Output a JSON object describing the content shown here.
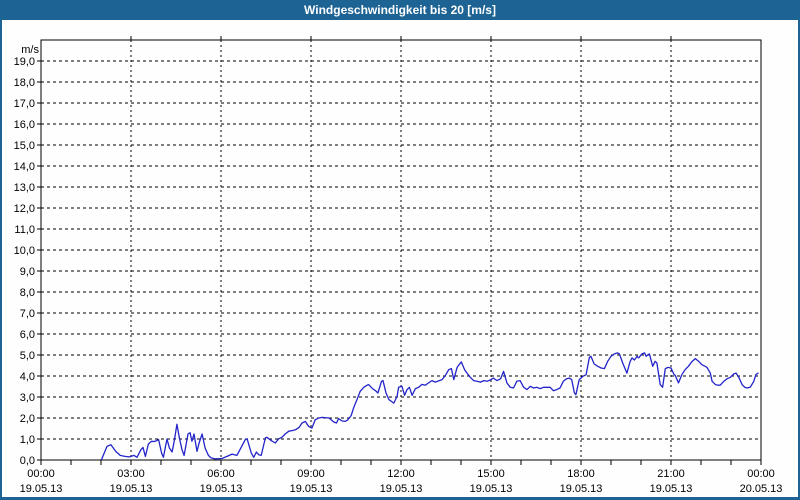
{
  "window": {
    "title": "Windgeschwindigkeit bis 20 [m/s]"
  },
  "colors": {
    "titlebar_bg": "#1d6394",
    "titlebar_text": "#ffffff",
    "frame_border": "#1d6394",
    "page_bg": "#fdfefd",
    "axis": "#000000",
    "grid": "#000000",
    "label_text": "#000000",
    "line": "#2424cb"
  },
  "chart_data": {
    "type": "line",
    "title": "Windgeschwindigkeit bis 20 [m/s]",
    "y_unit_label": "m/s",
    "ylabel": "",
    "xlabel": "",
    "ylim": [
      0,
      20
    ],
    "y_tick_step": 1,
    "y_tick_labels": [
      "0,0",
      "1,0",
      "2,0",
      "3,0",
      "4,0",
      "5,0",
      "6,0",
      "7,0",
      "8,0",
      "9,0",
      "10,0",
      "11,0",
      "12,0",
      "13,0",
      "14,0",
      "15,0",
      "16,0",
      "17,0",
      "18,0",
      "19,0"
    ],
    "grid": {
      "style": "dashed",
      "x_every_hours": 3,
      "y_every": 1
    },
    "legend": "none",
    "x_axis": {
      "range_hours": [
        0,
        24
      ],
      "minor_tick_every_hours": 1,
      "major_ticks": [
        {
          "hour": 0,
          "time": "00:00",
          "date": "19.05.13"
        },
        {
          "hour": 3,
          "time": "03:00",
          "date": "19.05.13"
        },
        {
          "hour": 6,
          "time": "06:00",
          "date": "19.05.13"
        },
        {
          "hour": 9,
          "time": "09:00",
          "date": "19.05.13"
        },
        {
          "hour": 12,
          "time": "12:00",
          "date": "19.05.13"
        },
        {
          "hour": 15,
          "time": "15:00",
          "date": "19.05.13"
        },
        {
          "hour": 18,
          "time": "18:00",
          "date": "19.05.13"
        },
        {
          "hour": 21,
          "time": "21:00",
          "date": "19.05.13"
        },
        {
          "hour": 24,
          "time": "00:00",
          "date": "20.05.13"
        }
      ]
    },
    "series": [
      {
        "name": "Windgeschwindigkeit",
        "unit": "m/s",
        "color": "#2424cb",
        "data_starts_at_hour": 2,
        "points_hour_value": [
          [
            2.02,
            0.03
          ],
          [
            2.2,
            0.65
          ],
          [
            2.33,
            0.73
          ],
          [
            2.5,
            0.4
          ],
          [
            2.64,
            0.22
          ],
          [
            2.8,
            0.17
          ],
          [
            2.95,
            0.15
          ],
          [
            3.1,
            0.22
          ],
          [
            3.2,
            0.13
          ],
          [
            3.33,
            0.49
          ],
          [
            3.4,
            0.6
          ],
          [
            3.48,
            0.17
          ],
          [
            3.58,
            0.76
          ],
          [
            3.68,
            0.89
          ],
          [
            3.77,
            0.88
          ],
          [
            3.85,
            0.92
          ],
          [
            3.92,
            0.97
          ],
          [
            4.02,
            0.33
          ],
          [
            4.08,
            0.13
          ],
          [
            4.2,
            1.0
          ],
          [
            4.28,
            0.57
          ],
          [
            4.37,
            0.38
          ],
          [
            4.45,
            0.97
          ],
          [
            4.53,
            1.7
          ],
          [
            4.62,
            1.0
          ],
          [
            4.7,
            0.49
          ],
          [
            4.77,
            0.22
          ],
          [
            4.9,
            1.24
          ],
          [
            4.97,
            1.3
          ],
          [
            5.03,
            0.89
          ],
          [
            5.1,
            1.24
          ],
          [
            5.2,
            0.41
          ],
          [
            5.27,
            0.81
          ],
          [
            5.37,
            1.24
          ],
          [
            5.47,
            0.57
          ],
          [
            5.58,
            0.22
          ],
          [
            5.67,
            0.1
          ],
          [
            5.8,
            0.05
          ],
          [
            6.03,
            0.07
          ],
          [
            6.2,
            0.17
          ],
          [
            6.37,
            0.28
          ],
          [
            6.53,
            0.22
          ],
          [
            6.81,
            0.97
          ],
          [
            6.87,
            1.01
          ],
          [
            7.01,
            0.33
          ],
          [
            7.09,
            0.13
          ],
          [
            7.18,
            0.38
          ],
          [
            7.26,
            0.25
          ],
          [
            7.34,
            0.22
          ],
          [
            7.48,
            1.05
          ],
          [
            7.53,
            1.08
          ],
          [
            7.68,
            0.92
          ],
          [
            7.81,
            0.81
          ],
          [
            7.92,
            1.01
          ],
          [
            8.03,
            1.08
          ],
          [
            8.14,
            1.24
          ],
          [
            8.26,
            1.37
          ],
          [
            8.37,
            1.4
          ],
          [
            8.48,
            1.44
          ],
          [
            8.61,
            1.56
          ],
          [
            8.7,
            1.76
          ],
          [
            8.81,
            1.84
          ],
          [
            8.92,
            1.6
          ],
          [
            9.03,
            1.52
          ],
          [
            9.14,
            1.92
          ],
          [
            9.26,
            2.0
          ],
          [
            9.37,
            2.03
          ],
          [
            9.6,
            2.0
          ],
          [
            9.76,
            1.81
          ],
          [
            9.85,
            1.76
          ],
          [
            9.92,
            1.97
          ],
          [
            10.03,
            1.86
          ],
          [
            10.14,
            1.84
          ],
          [
            10.22,
            1.9
          ],
          [
            10.34,
            2.12
          ],
          [
            10.42,
            2.48
          ],
          [
            10.53,
            2.87
          ],
          [
            10.64,
            3.27
          ],
          [
            10.76,
            3.46
          ],
          [
            10.87,
            3.56
          ],
          [
            10.92,
            3.59
          ],
          [
            11.05,
            3.4
          ],
          [
            11.15,
            3.3
          ],
          [
            11.23,
            3.19
          ],
          [
            11.35,
            3.75
          ],
          [
            11.4,
            3.78
          ],
          [
            11.5,
            3.19
          ],
          [
            11.6,
            2.87
          ],
          [
            11.68,
            2.79
          ],
          [
            11.76,
            2.71
          ],
          [
            11.87,
            3.03
          ],
          [
            11.92,
            3.46
          ],
          [
            12.03,
            3.51
          ],
          [
            12.12,
            3.08
          ],
          [
            12.2,
            3.35
          ],
          [
            12.28,
            3.46
          ],
          [
            12.37,
            3.08
          ],
          [
            12.48,
            3.4
          ],
          [
            12.59,
            3.46
          ],
          [
            12.7,
            3.6
          ],
          [
            12.81,
            3.56
          ],
          [
            12.92,
            3.67
          ],
          [
            13.03,
            3.78
          ],
          [
            13.14,
            3.71
          ],
          [
            13.37,
            3.83
          ],
          [
            13.48,
            4.03
          ],
          [
            13.59,
            4.3
          ],
          [
            13.68,
            4.35
          ],
          [
            13.76,
            3.83
          ],
          [
            13.87,
            4.41
          ],
          [
            14.01,
            4.67
          ],
          [
            14.12,
            4.3
          ],
          [
            14.2,
            4.14
          ],
          [
            14.31,
            3.94
          ],
          [
            14.42,
            3.78
          ],
          [
            14.53,
            3.75
          ],
          [
            14.65,
            3.71
          ],
          [
            14.76,
            3.78
          ],
          [
            14.87,
            3.75
          ],
          [
            15.0,
            3.83
          ],
          [
            15.08,
            3.9
          ],
          [
            15.2,
            3.78
          ],
          [
            15.32,
            3.87
          ],
          [
            15.42,
            4.22
          ],
          [
            15.53,
            3.67
          ],
          [
            15.64,
            3.46
          ],
          [
            15.75,
            3.43
          ],
          [
            15.86,
            3.75
          ],
          [
            15.97,
            3.78
          ],
          [
            16.09,
            3.46
          ],
          [
            16.2,
            3.35
          ],
          [
            16.31,
            3.51
          ],
          [
            16.42,
            3.43
          ],
          [
            16.53,
            3.46
          ],
          [
            16.64,
            3.4
          ],
          [
            16.75,
            3.46
          ],
          [
            16.86,
            3.46
          ],
          [
            16.97,
            3.46
          ],
          [
            17.08,
            3.3
          ],
          [
            17.19,
            3.35
          ],
          [
            17.3,
            3.43
          ],
          [
            17.41,
            3.75
          ],
          [
            17.52,
            3.87
          ],
          [
            17.61,
            3.9
          ],
          [
            17.69,
            3.83
          ],
          [
            17.78,
            3.19
          ],
          [
            17.83,
            3.11
          ],
          [
            17.94,
            3.83
          ],
          [
            18.06,
            3.98
          ],
          [
            18.17,
            4.06
          ],
          [
            18.28,
            4.89
          ],
          [
            18.33,
            4.94
          ],
          [
            18.44,
            4.57
          ],
          [
            18.56,
            4.46
          ],
          [
            18.67,
            4.38
          ],
          [
            18.78,
            4.35
          ],
          [
            18.89,
            4.7
          ],
          [
            19.0,
            4.94
          ],
          [
            19.11,
            5.05
          ],
          [
            19.22,
            5.1
          ],
          [
            19.28,
            5.05
          ],
          [
            19.39,
            4.62
          ],
          [
            19.53,
            4.14
          ],
          [
            19.64,
            4.7
          ],
          [
            19.7,
            4.86
          ],
          [
            19.78,
            4.76
          ],
          [
            19.87,
            4.94
          ],
          [
            19.92,
            4.86
          ],
          [
            20.03,
            5.05
          ],
          [
            20.12,
            5.1
          ],
          [
            20.17,
            4.94
          ],
          [
            20.24,
            5.02
          ],
          [
            20.28,
            5.05
          ],
          [
            20.39,
            4.46
          ],
          [
            20.47,
            4.7
          ],
          [
            20.53,
            4.62
          ],
          [
            20.64,
            3.59
          ],
          [
            20.72,
            3.46
          ],
          [
            20.81,
            4.35
          ],
          [
            20.9,
            4.41
          ],
          [
            21.0,
            4.38
          ],
          [
            21.09,
            4.1
          ],
          [
            21.14,
            4.03
          ],
          [
            21.25,
            3.67
          ],
          [
            21.36,
            4.06
          ],
          [
            21.47,
            4.3
          ],
          [
            21.58,
            4.46
          ],
          [
            21.69,
            4.67
          ],
          [
            21.81,
            4.83
          ],
          [
            21.92,
            4.7
          ],
          [
            22.03,
            4.54
          ],
          [
            22.14,
            4.46
          ],
          [
            22.2,
            4.41
          ],
          [
            22.31,
            4.14
          ],
          [
            22.37,
            3.75
          ],
          [
            22.48,
            3.59
          ],
          [
            22.57,
            3.56
          ],
          [
            22.64,
            3.56
          ],
          [
            22.76,
            3.75
          ],
          [
            22.87,
            3.87
          ],
          [
            22.98,
            3.94
          ],
          [
            23.09,
            4.1
          ],
          [
            23.17,
            4.14
          ],
          [
            23.26,
            3.94
          ],
          [
            23.37,
            3.59
          ],
          [
            23.46,
            3.46
          ],
          [
            23.53,
            3.43
          ],
          [
            23.64,
            3.46
          ],
          [
            23.76,
            3.75
          ],
          [
            23.83,
            4.06
          ],
          [
            23.9,
            4.14
          ]
        ]
      }
    ]
  }
}
